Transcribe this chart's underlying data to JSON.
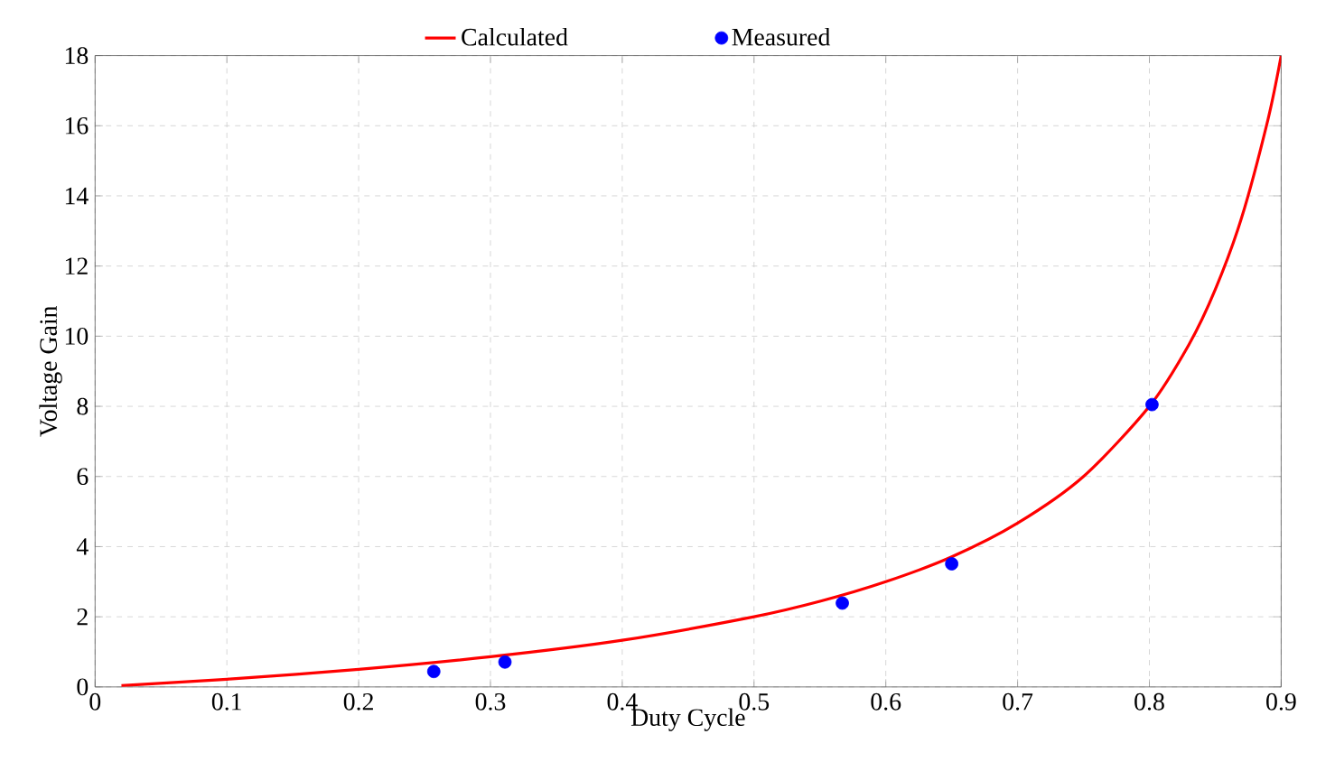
{
  "chart_data": {
    "type": "line",
    "xlabel": "Duty Cycle",
    "ylabel": "Voltage Gain",
    "xlim": [
      0,
      0.9
    ],
    "ylim": [
      0,
      18
    ],
    "xticks": [
      0,
      0.1,
      0.2,
      0.3,
      0.4,
      0.5,
      0.6,
      0.7,
      0.8,
      0.9
    ],
    "yticks": [
      0,
      2,
      4,
      6,
      8,
      10,
      12,
      14,
      16,
      18
    ],
    "grid": true,
    "legend": "top",
    "series": [
      {
        "name": "Calculated",
        "color": "#ff0000",
        "marker": "none",
        "line_style": "solid",
        "x": [
          0.02,
          0.1,
          0.2,
          0.3,
          0.4,
          0.5,
          0.55,
          0.6,
          0.65,
          0.7,
          0.75,
          0.8,
          0.83,
          0.85,
          0.87,
          0.89,
          0.9
        ],
        "values": [
          0.04,
          0.22,
          0.5,
          0.86,
          1.33,
          2,
          2.44,
          3,
          3.71,
          4.67,
          6,
          8,
          9.76,
          11.33,
          13.38,
          16.18,
          18
        ]
      },
      {
        "name": "Measured",
        "color": "#0000ff",
        "type": "scatter",
        "marker": "circle",
        "x": [
          0.257,
          0.311,
          0.567,
          0.65,
          0.802
        ],
        "values": [
          0.44,
          0.71,
          2.39,
          3.51,
          8.05
        ]
      }
    ]
  }
}
